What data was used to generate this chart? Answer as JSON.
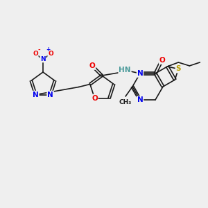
{
  "background_color": "#efefef",
  "atom_colors": {
    "C": "#1a1a1a",
    "N": "#0000ee",
    "O": "#ee0000",
    "S": "#b8a000",
    "H": "#4a9a9a",
    "bond": "#1a1a1a"
  }
}
